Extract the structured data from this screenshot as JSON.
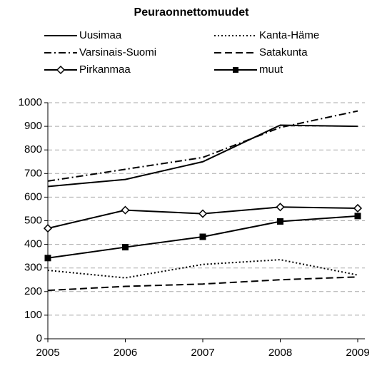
{
  "chart_data": {
    "type": "line",
    "title": "Peuraonnettomuudet",
    "categories": [
      "2005",
      "2006",
      "2007",
      "2008",
      "2009"
    ],
    "series": [
      {
        "name": "Uusimaa",
        "color": "#000000",
        "style": "solid",
        "marker": "none",
        "values": [
          645,
          675,
          750,
          905,
          900
        ]
      },
      {
        "name": "Kanta-Häme",
        "color": "#000000",
        "style": "dotted",
        "marker": "none",
        "values": [
          290,
          258,
          315,
          335,
          270
        ]
      },
      {
        "name": "Varsinais-Suomi",
        "color": "#000000",
        "style": "dashdot",
        "marker": "none",
        "values": [
          668,
          718,
          768,
          895,
          965
        ]
      },
      {
        "name": "Satakunta",
        "color": "#000000",
        "style": "dashed",
        "marker": "none",
        "values": [
          205,
          222,
          232,
          250,
          262
        ]
      },
      {
        "name": "Pirkanmaa",
        "color": "#000000",
        "style": "solid",
        "marker": "diamond",
        "values": [
          468,
          545,
          530,
          558,
          553
        ]
      },
      {
        "name": "muut",
        "color": "#000000",
        "style": "solid",
        "marker": "square",
        "values": [
          342,
          388,
          432,
          497,
          520
        ]
      }
    ],
    "ylim": [
      0,
      1000
    ],
    "yticks": [
      0,
      100,
      200,
      300,
      400,
      500,
      600,
      700,
      800,
      900,
      1000
    ],
    "grid": true
  }
}
